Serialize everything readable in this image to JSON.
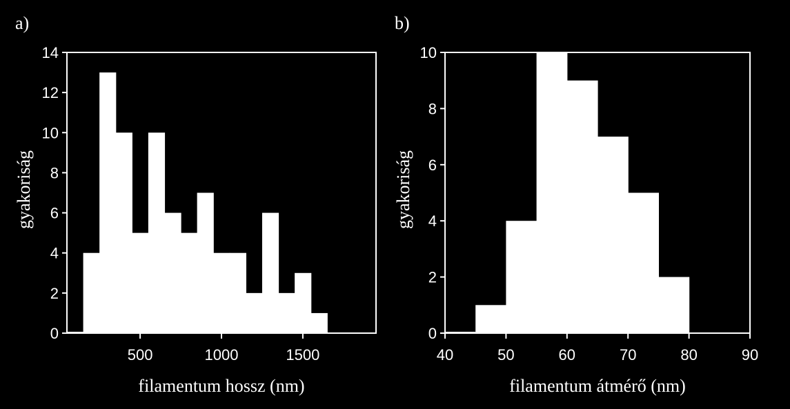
{
  "chart_data": [
    {
      "type": "bar",
      "panel_label": "a)",
      "xlabel": "filamentum hossz (nm)",
      "ylabel": "gyakoriság",
      "xlim": [
        50,
        1950
      ],
      "ylim": [
        0,
        14
      ],
      "xticks": [
        500,
        1000,
        1500
      ],
      "yticks": [
        0,
        2,
        4,
        6,
        8,
        10,
        12,
        14
      ],
      "bin_width": 100,
      "bins": [
        {
          "x0": 150,
          "x1": 250,
          "value": 4
        },
        {
          "x0": 250,
          "x1": 350,
          "value": 13
        },
        {
          "x0": 350,
          "x1": 450,
          "value": 10
        },
        {
          "x0": 450,
          "x1": 550,
          "value": 5
        },
        {
          "x0": 550,
          "x1": 650,
          "value": 10
        },
        {
          "x0": 650,
          "x1": 750,
          "value": 6
        },
        {
          "x0": 750,
          "x1": 850,
          "value": 5
        },
        {
          "x0": 850,
          "x1": 950,
          "value": 7
        },
        {
          "x0": 950,
          "x1": 1050,
          "value": 4
        },
        {
          "x0": 1050,
          "x1": 1150,
          "value": 4
        },
        {
          "x0": 1150,
          "x1": 1250,
          "value": 2
        },
        {
          "x0": 1250,
          "x1": 1350,
          "value": 6
        },
        {
          "x0": 1350,
          "x1": 1450,
          "value": 2
        },
        {
          "x0": 1450,
          "x1": 1550,
          "value": 3
        },
        {
          "x0": 1550,
          "x1": 1650,
          "value": 1
        }
      ],
      "colors": {
        "background": "#000000",
        "bars": "#ffffff",
        "axes": "#ffffff"
      }
    },
    {
      "type": "bar",
      "panel_label": "b)",
      "xlabel": "filamentum átmérő (nm)",
      "ylabel": "gyakoriság",
      "xlim": [
        40,
        90
      ],
      "ylim": [
        0,
        10
      ],
      "xticks": [
        40,
        50,
        60,
        70,
        80,
        90
      ],
      "yticks": [
        0,
        2,
        4,
        6,
        8,
        10
      ],
      "bin_width": 5,
      "bins": [
        {
          "x0": 45,
          "x1": 50,
          "value": 1
        },
        {
          "x0": 50,
          "x1": 55,
          "value": 4
        },
        {
          "x0": 55,
          "x1": 60,
          "value": 10
        },
        {
          "x0": 60,
          "x1": 65,
          "value": 9
        },
        {
          "x0": 65,
          "x1": 70,
          "value": 7
        },
        {
          "x0": 70,
          "x1": 75,
          "value": 5
        },
        {
          "x0": 75,
          "x1": 80,
          "value": 2
        }
      ],
      "colors": {
        "background": "#000000",
        "bars": "#ffffff",
        "axes": "#ffffff"
      }
    }
  ]
}
